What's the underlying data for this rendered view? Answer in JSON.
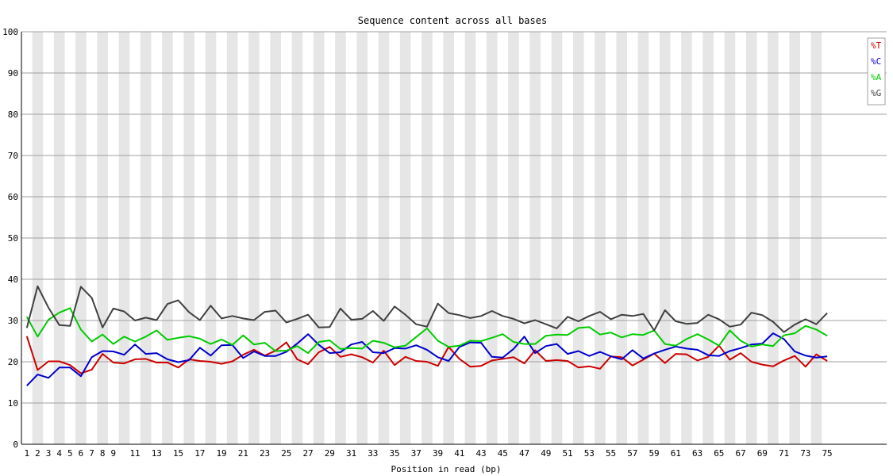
{
  "chart_data": {
    "type": "line",
    "title": "Sequence content across all bases",
    "xlabel": "Position in read (bp)",
    "ylabel": "",
    "x": [
      1,
      2,
      3,
      4,
      5,
      6,
      7,
      8,
      9,
      10,
      11,
      12,
      13,
      14,
      15,
      16,
      17,
      18,
      19,
      20,
      21,
      22,
      23,
      24,
      25,
      26,
      27,
      28,
      29,
      30,
      31,
      32,
      33,
      34,
      35,
      36,
      37,
      38,
      39,
      40,
      41,
      42,
      43,
      44,
      45,
      46,
      47,
      48,
      49,
      50,
      51,
      52,
      53,
      54,
      55,
      56,
      57,
      58,
      59,
      60,
      61,
      62,
      63,
      64,
      65,
      66,
      67,
      68,
      69,
      70,
      71,
      72,
      73,
      74,
      75
    ],
    "x_tick_labels": [
      "1",
      "2",
      "3",
      "4",
      "5",
      "6",
      "7",
      "8",
      "9",
      "11",
      "13",
      "15",
      "17",
      "19",
      "21",
      "23",
      "25",
      "27",
      "29",
      "31",
      "33",
      "35",
      "37",
      "39",
      "41",
      "43",
      "45",
      "47",
      "49",
      "51",
      "53",
      "55",
      "57",
      "59",
      "61",
      "63",
      "65",
      "67",
      "69",
      "71",
      "73",
      "75"
    ],
    "y_ticks": [
      0,
      10,
      20,
      30,
      40,
      50,
      60,
      70,
      80,
      90,
      100
    ],
    "ylim": [
      0,
      100
    ],
    "grid": true,
    "legend_position": "top-right",
    "series": [
      {
        "name": "%T",
        "color": "#cc0000",
        "values": [
          26.2,
          18.0,
          20.1,
          20.1,
          19.2,
          17.2,
          18.1,
          21.9,
          19.8,
          19.6,
          20.6,
          20.7,
          19.8,
          19.8,
          18.6,
          20.6,
          20.2,
          20.0,
          19.5,
          20.1,
          21.7,
          22.9,
          21.5,
          22.7,
          24.7,
          20.6,
          19.4,
          22.3,
          23.6,
          21.2,
          21.8,
          21.1,
          19.8,
          22.7,
          19.2,
          21.2,
          20.2,
          20.0,
          19.0,
          23.6,
          20.7,
          18.8,
          19.0,
          20.3,
          20.7,
          21.1,
          19.6,
          22.8,
          20.2,
          20.4,
          20.2,
          18.6,
          18.9,
          18.3,
          21.3,
          21.1,
          19.1,
          20.5,
          22.0,
          19.7,
          21.9,
          21.8,
          20.3,
          21.2,
          23.9,
          20.5,
          22.1,
          20.0,
          19.3,
          18.9,
          20.3,
          21.4,
          18.8,
          21.8,
          20.2
        ]
      },
      {
        "name": "%C",
        "color": "#0000cc",
        "values": [
          14.2,
          16.9,
          16.1,
          18.6,
          18.6,
          16.5,
          21.1,
          22.6,
          22.5,
          21.7,
          24.2,
          21.9,
          22.1,
          20.6,
          19.9,
          20.4,
          23.4,
          21.5,
          24.0,
          24.1,
          20.9,
          22.5,
          21.4,
          21.4,
          22.4,
          24.4,
          26.7,
          24.1,
          22.1,
          22.3,
          24.2,
          24.8,
          22.3,
          22.1,
          23.3,
          23.2,
          24.0,
          22.9,
          21.1,
          20.2,
          23.6,
          24.7,
          24.6,
          21.2,
          21.0,
          23.1,
          26.1,
          22.1,
          23.8,
          24.3,
          21.9,
          22.6,
          21.4,
          22.4,
          21.3,
          20.6,
          22.8,
          20.8,
          22.0,
          22.9,
          23.7,
          23.2,
          22.9,
          21.6,
          21.4,
          22.6,
          23.3,
          24.2,
          24.4,
          26.9,
          25.5,
          22.5,
          21.5,
          21.0,
          21.3
        ]
      },
      {
        "name": "%A",
        "color": "#00cc00",
        "values": [
          30.9,
          26.1,
          30.2,
          31.9,
          33.0,
          27.8,
          24.9,
          26.6,
          24.3,
          26.1,
          24.9,
          26.1,
          27.6,
          25.3,
          25.8,
          26.2,
          25.6,
          24.3,
          25.4,
          24.1,
          26.4,
          24.2,
          24.6,
          22.6,
          22.7,
          23.8,
          22.1,
          24.8,
          25.2,
          23.1,
          23.3,
          23.2,
          25.1,
          24.6,
          23.5,
          23.9,
          26.0,
          28.1,
          25.1,
          23.6,
          23.9,
          25.1,
          25.0,
          25.8,
          26.7,
          24.8,
          24.3,
          24.3,
          26.3,
          26.6,
          26.5,
          28.2,
          28.4,
          26.6,
          27.1,
          25.9,
          26.7,
          26.5,
          27.6,
          24.3,
          23.9,
          25.5,
          26.7,
          25.4,
          23.9,
          27.6,
          25.1,
          23.7,
          24.2,
          23.8,
          26.4,
          26.9,
          28.7,
          27.8,
          26.3
        ]
      },
      {
        "name": "%G",
        "color": "#404040",
        "values": [
          28.2,
          38.3,
          33.1,
          28.9,
          28.7,
          38.2,
          35.5,
          28.3,
          32.9,
          32.2,
          30.0,
          30.7,
          30.1,
          34.0,
          34.9,
          32.0,
          30.1,
          33.6,
          30.5,
          31.1,
          30.5,
          30.1,
          32.1,
          32.4,
          29.5,
          30.4,
          31.4,
          28.3,
          28.4,
          32.9,
          30.2,
          30.4,
          32.3,
          29.9,
          33.4,
          31.4,
          29.1,
          28.5,
          34.1,
          31.8,
          31.3,
          30.6,
          31.1,
          32.3,
          31.1,
          30.4,
          29.3,
          30.1,
          29.1,
          28.1,
          30.9,
          29.8,
          31.1,
          32.1,
          30.3,
          31.4,
          31.1,
          31.6,
          27.6,
          32.5,
          29.8,
          29.2,
          29.4,
          31.4,
          30.3,
          28.5,
          29.0,
          31.9,
          31.3,
          29.7,
          27.2,
          29.0,
          30.3,
          29.1,
          31.8
        ]
      }
    ]
  }
}
